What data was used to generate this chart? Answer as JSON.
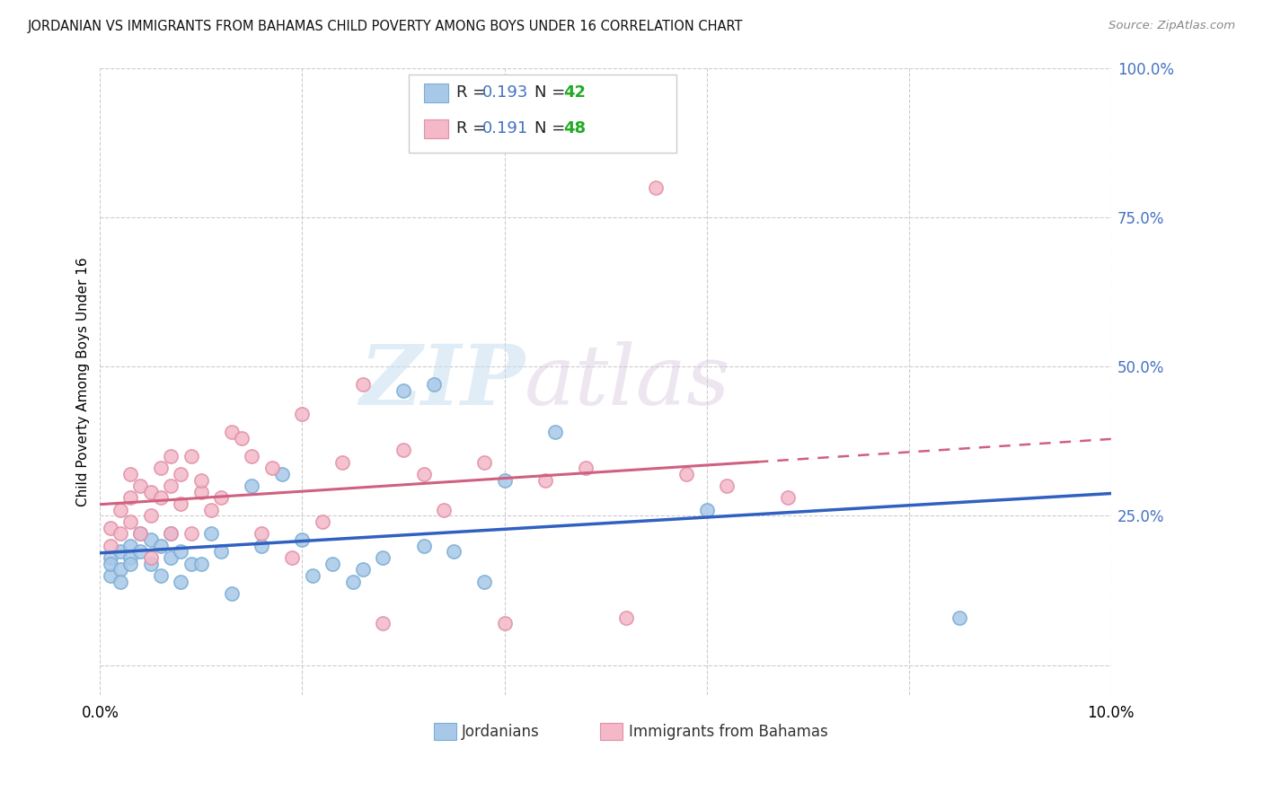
{
  "title": "JORDANIAN VS IMMIGRANTS FROM BAHAMAS CHILD POVERTY AMONG BOYS UNDER 16 CORRELATION CHART",
  "source": "Source: ZipAtlas.com",
  "ylabel": "Child Poverty Among Boys Under 16",
  "x_min": 0.0,
  "x_max": 0.1,
  "y_min": -0.05,
  "y_max": 1.0,
  "jordanians_color": "#a8c8e8",
  "jordanians_edge": "#7aadd4",
  "bahamas_color": "#f4b8c8",
  "bahamas_edge": "#e090a8",
  "jordanians_line_color": "#3060c0",
  "bahamas_line_color": "#d06080",
  "legend_R_color": "#4472c4",
  "legend_N_color": "#22aa22",
  "jordanians_R": "0.193",
  "jordanians_N": "42",
  "bahamas_R": "0.191",
  "bahamas_N": "48",
  "watermark_zip": "ZIP",
  "watermark_atlas": "atlas",
  "jordanians_x": [
    0.001,
    0.001,
    0.001,
    0.002,
    0.002,
    0.002,
    0.003,
    0.003,
    0.003,
    0.004,
    0.004,
    0.005,
    0.005,
    0.006,
    0.006,
    0.007,
    0.007,
    0.008,
    0.008,
    0.009,
    0.01,
    0.011,
    0.012,
    0.013,
    0.015,
    0.016,
    0.018,
    0.02,
    0.021,
    0.023,
    0.025,
    0.026,
    0.028,
    0.03,
    0.032,
    0.033,
    0.035,
    0.038,
    0.04,
    0.045,
    0.06,
    0.085
  ],
  "jordanians_y": [
    0.18,
    0.15,
    0.17,
    0.19,
    0.16,
    0.14,
    0.2,
    0.18,
    0.17,
    0.22,
    0.19,
    0.21,
    0.17,
    0.15,
    0.2,
    0.18,
    0.22,
    0.19,
    0.14,
    0.17,
    0.17,
    0.22,
    0.19,
    0.12,
    0.3,
    0.2,
    0.32,
    0.21,
    0.15,
    0.17,
    0.14,
    0.16,
    0.18,
    0.46,
    0.2,
    0.47,
    0.19,
    0.14,
    0.31,
    0.39,
    0.26,
    0.08
  ],
  "bahamas_x": [
    0.001,
    0.001,
    0.002,
    0.002,
    0.003,
    0.003,
    0.003,
    0.004,
    0.004,
    0.005,
    0.005,
    0.005,
    0.006,
    0.006,
    0.007,
    0.007,
    0.007,
    0.008,
    0.008,
    0.009,
    0.009,
    0.01,
    0.01,
    0.011,
    0.012,
    0.013,
    0.014,
    0.015,
    0.016,
    0.017,
    0.019,
    0.02,
    0.022,
    0.024,
    0.026,
    0.028,
    0.03,
    0.032,
    0.034,
    0.038,
    0.04,
    0.044,
    0.048,
    0.052,
    0.055,
    0.058,
    0.062,
    0.068
  ],
  "bahamas_y": [
    0.2,
    0.23,
    0.22,
    0.26,
    0.24,
    0.28,
    0.32,
    0.3,
    0.22,
    0.29,
    0.25,
    0.18,
    0.33,
    0.28,
    0.35,
    0.3,
    0.22,
    0.32,
    0.27,
    0.35,
    0.22,
    0.29,
    0.31,
    0.26,
    0.28,
    0.39,
    0.38,
    0.35,
    0.22,
    0.33,
    0.18,
    0.42,
    0.24,
    0.34,
    0.47,
    0.07,
    0.36,
    0.32,
    0.26,
    0.34,
    0.07,
    0.31,
    0.33,
    0.08,
    0.8,
    0.32,
    0.3,
    0.28
  ],
  "figsize": [
    14.06,
    8.92
  ],
  "dpi": 100
}
